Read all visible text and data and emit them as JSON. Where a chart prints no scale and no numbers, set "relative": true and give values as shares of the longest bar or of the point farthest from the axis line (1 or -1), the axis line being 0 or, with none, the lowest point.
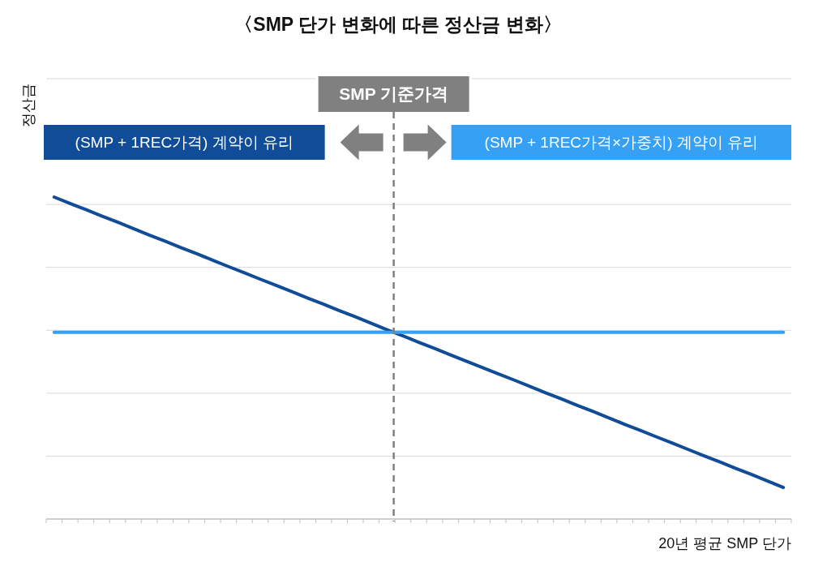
{
  "chart_data": {
    "type": "line",
    "title": "〈SMP 단가 변화에 따른 정산금 변화〉",
    "xlabel": "20년 평균 SMP 단가",
    "ylabel": "정산금",
    "categories": [
      null,
      null,
      null,
      null,
      null,
      null,
      null,
      null,
      null,
      null,
      null,
      null,
      null,
      null,
      null,
      null,
      null,
      null,
      null,
      null,
      null,
      null,
      null,
      null,
      null,
      null,
      null,
      null,
      null,
      null,
      null,
      null,
      null,
      null,
      null,
      null,
      null,
      null,
      null,
      null,
      null,
      null,
      null,
      null,
      null,
      null,
      null
    ],
    "series": [
      {
        "color": "#104c97",
        "values": [
          1.0,
          0.98,
          0.961,
          0.941,
          0.922,
          0.902,
          0.882,
          0.863,
          0.843,
          0.824,
          0.804,
          0.784,
          0.765,
          0.745,
          0.726,
          0.706,
          0.686,
          0.667,
          0.647,
          0.628,
          0.608,
          0.588,
          0.569,
          0.549,
          0.53,
          0.51,
          0.49,
          0.471,
          0.451,
          0.432,
          0.412,
          0.392,
          0.373,
          0.353,
          0.334,
          0.314,
          0.294,
          0.275,
          0.255,
          0.236,
          0.216,
          0.196,
          0.177,
          0.157,
          0.138,
          0.118,
          0.098
        ]
      },
      {
        "color": "#35a0f4",
        "values": [
          0.58,
          0.58,
          0.58,
          0.58,
          0.58,
          0.58,
          0.58,
          0.58,
          0.58,
          0.58,
          0.58,
          0.58,
          0.58,
          0.58,
          0.58,
          0.58,
          0.58,
          0.58,
          0.58,
          0.58,
          0.58,
          0.58,
          0.58,
          0.58,
          0.58,
          0.58,
          0.58,
          0.58,
          0.58,
          0.58,
          0.58,
          0.58,
          0.58,
          0.58,
          0.58,
          0.58,
          0.58,
          0.58,
          0.58,
          0.58,
          0.58,
          0.58,
          0.58,
          0.58,
          0.58,
          0.58,
          0.58
        ]
      }
    ],
    "relative": true,
    "grid": true,
    "annotations": [
      "SMP 기준가격",
      "(SMP + 1REC가격) 계약이 유리",
      "(SMP + 1REC가격×가중치) 계약이 유리"
    ]
  }
}
